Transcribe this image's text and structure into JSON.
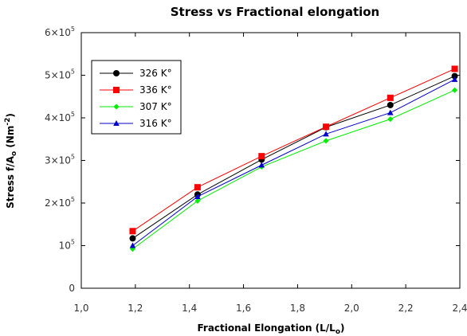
{
  "chart_data": {
    "type": "line",
    "title": "Stress vs Fractional elongation",
    "xlabel_main": "Fractional Elongation (L/L",
    "xlabel_sub": "o",
    "xlabel_end": ")",
    "ylabel_main": "Stress f/A",
    "ylabel_sub": "o",
    "ylabel_unit": " (Nm",
    "ylabel_sup": "-2",
    "ylabel_end": ")",
    "xlim": [
      1.0,
      2.4
    ],
    "ylim": [
      0,
      600000
    ],
    "x_ticks": [
      1.0,
      1.2,
      1.4,
      1.6,
      1.8,
      2.0,
      2.2,
      2.4
    ],
    "x_tick_labels": [
      "1,0",
      "1,2",
      "1,4",
      "1,6",
      "1,8",
      "2,0",
      "2,2",
      "2,4"
    ],
    "y_ticks": [
      0,
      100000,
      200000,
      300000,
      400000,
      500000,
      600000
    ],
    "y_tick_labels": [
      {
        "base": "0",
        "exp": ""
      },
      {
        "base": "10",
        "exp": "5"
      },
      {
        "base": "2×10",
        "exp": "5"
      },
      {
        "base": "3×10",
        "exp": "5"
      },
      {
        "base": "4×10",
        "exp": "5"
      },
      {
        "base": "5×10",
        "exp": "5"
      },
      {
        "base": "6×10",
        "exp": "5"
      }
    ],
    "grid": false,
    "legend_position": "top-left",
    "x": [
      1.19,
      1.43,
      1.667,
      1.905,
      2.143,
      2.381
    ],
    "series": [
      {
        "name": "326 K°",
        "color": "#000000",
        "marker": "circle",
        "values": [
          117000,
          220000,
          302000,
          378000,
          430000,
          498000
        ]
      },
      {
        "name": "336 K°",
        "color": "#ff0000",
        "marker": "square",
        "values": [
          134000,
          237000,
          310000,
          379000,
          447000,
          515000
        ]
      },
      {
        "name": "307 K°",
        "color": "#00ee00",
        "marker": "diamond",
        "values": [
          92000,
          205000,
          285000,
          346000,
          397000,
          465000
        ]
      },
      {
        "name": "316 K°",
        "color": "#0000cc",
        "marker": "triangle",
        "values": [
          100000,
          215000,
          289000,
          362000,
          412000,
          490000
        ]
      }
    ]
  }
}
